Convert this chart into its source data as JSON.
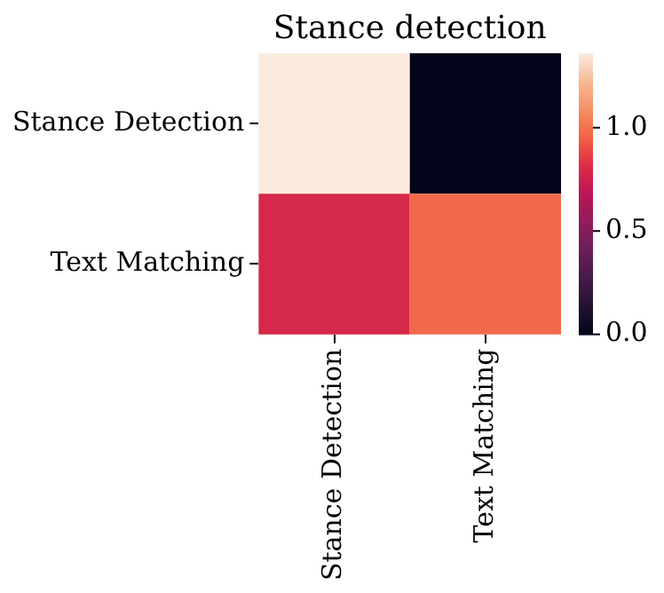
{
  "chart_data": {
    "type": "heatmap",
    "title": "Stance detection",
    "categories": [
      "Stance Detection",
      "Text Matching"
    ],
    "y_categories": [
      "Stance Detection",
      "Text Matching"
    ],
    "cells": [
      [
        1.36,
        0
      ],
      [
        0.79,
        0.98
      ]
    ],
    "clim": [
      0,
      1.36
    ],
    "cticks": [
      {
        "value": 0,
        "label": "0.0"
      },
      {
        "value": 0.5,
        "label": "0.5"
      },
      {
        "value": 1,
        "label": "1.0"
      }
    ]
  }
}
